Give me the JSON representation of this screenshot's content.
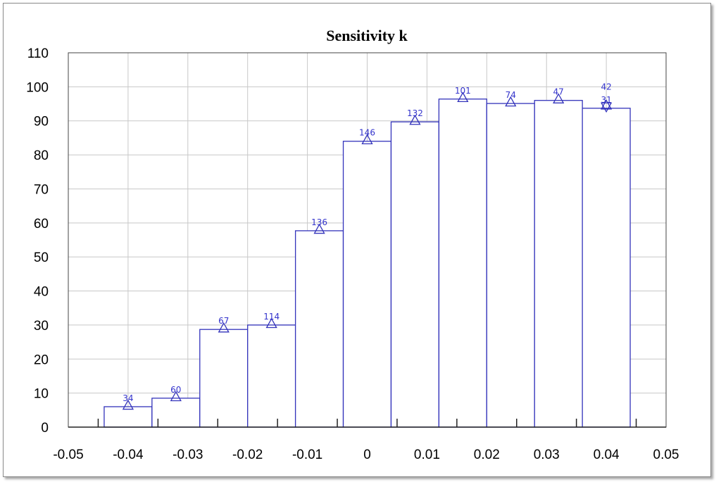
{
  "chart_data": {
    "type": "bar",
    "title": "Sensitivity k",
    "xlabel": "",
    "ylabel": "",
    "xlim": [
      -0.05,
      0.05
    ],
    "ylim": [
      0,
      110
    ],
    "grid": true,
    "bin_width": 0.008,
    "x_ticks": [
      "-0.05",
      "-0.04",
      "-0.03",
      "-0.02",
      "-0.01",
      "0",
      "0.01",
      "0.02",
      "0.03",
      "0.04",
      "0.05"
    ],
    "y_ticks": [
      "0",
      "10",
      "20",
      "30",
      "40",
      "50",
      "60",
      "70",
      "80",
      "90",
      "100",
      "110"
    ],
    "bins": [
      {
        "x": -0.04,
        "value": 6.0,
        "count": "34"
      },
      {
        "x": -0.032,
        "value": 8.5,
        "count": "60"
      },
      {
        "x": -0.024,
        "value": 28.7,
        "count": "67"
      },
      {
        "x": -0.016,
        "value": 30.0,
        "count": "114"
      },
      {
        "x": -0.008,
        "value": 57.7,
        "count": "136"
      },
      {
        "x": 0.0,
        "value": 84.0,
        "count": "146"
      },
      {
        "x": 0.008,
        "value": 89.7,
        "count": "132"
      },
      {
        "x": 0.016,
        "value": 96.4,
        "count": "101"
      },
      {
        "x": 0.024,
        "value": 95.1,
        "count": "74"
      },
      {
        "x": 0.032,
        "value": 96.0,
        "count": "47"
      },
      {
        "x": 0.04,
        "value": 93.7,
        "count": "31"
      }
    ],
    "extra_markers": [
      {
        "x": 0.04,
        "value": 94.2,
        "count": "42",
        "marker": "triangle-up"
      }
    ],
    "colors": {
      "bars": "#3333bb",
      "grid": "#c8c8c8",
      "labels": "#3333cc"
    }
  }
}
